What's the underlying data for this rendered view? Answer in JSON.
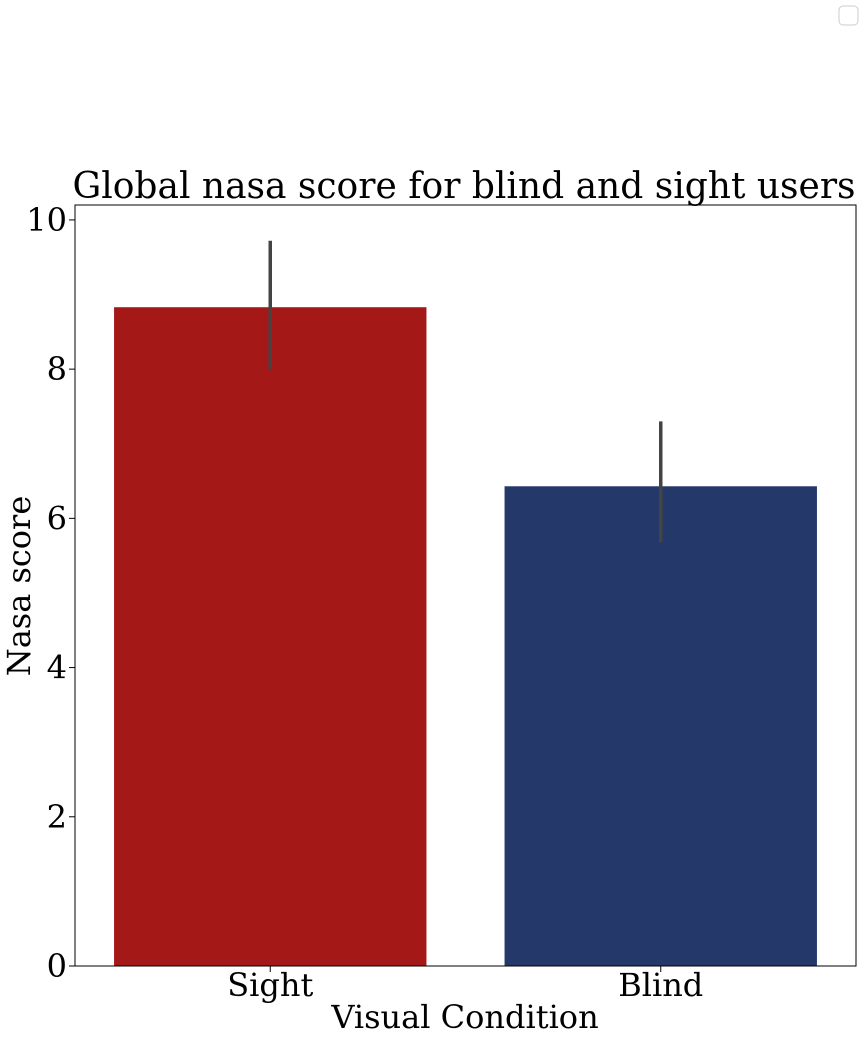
{
  "chart_data": {
    "type": "bar",
    "title": "Global nasa score for blind and sight users",
    "xlabel": "Visual Condition",
    "ylabel": "Nasa score",
    "categories": [
      "Sight",
      "Blind"
    ],
    "values": [
      8.83,
      6.43
    ],
    "error_bars": [
      {
        "low": 8.0,
        "high": 9.72
      },
      {
        "low": 5.68,
        "high": 7.3
      }
    ],
    "colors": [
      "#a51818",
      "#25386a"
    ],
    "error_color": "#444444",
    "ylim": [
      0,
      10.2
    ],
    "yticks": [
      0,
      2,
      4,
      6,
      8,
      10
    ],
    "ytick_labels": [
      "0",
      "2",
      "4",
      "6",
      "8",
      "10"
    ],
    "grid": false,
    "legend": {
      "placement": "top-right",
      "entries": []
    }
  }
}
